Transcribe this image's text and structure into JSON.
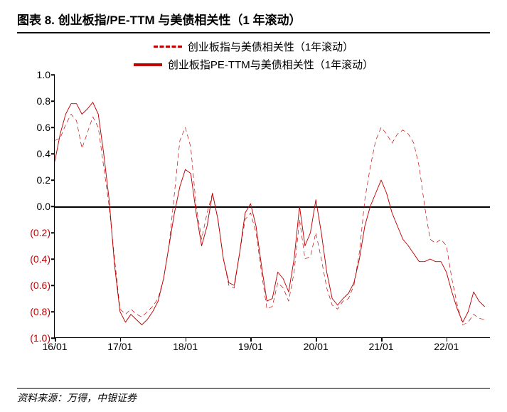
{
  "title": "图表 8. 创业板指/PE-TTM 与美债相关性（1 年滚动）",
  "source": "资料来源：万得，中银证券",
  "chart": {
    "type": "line",
    "ylim": [
      -1.0,
      1.0
    ],
    "yticks": [
      {
        "v": 1.0,
        "label": "1.0",
        "neg": false
      },
      {
        "v": 0.8,
        "label": "0.8",
        "neg": false
      },
      {
        "v": 0.6,
        "label": "0.6",
        "neg": false
      },
      {
        "v": 0.4,
        "label": "0.4",
        "neg": false
      },
      {
        "v": 0.2,
        "label": "0.2",
        "neg": false
      },
      {
        "v": 0.0,
        "label": "0.0",
        "neg": false
      },
      {
        "v": -0.2,
        "label": "(0.2)",
        "neg": true
      },
      {
        "v": -0.4,
        "label": "(0.4)",
        "neg": true
      },
      {
        "v": -0.6,
        "label": "(0.6)",
        "neg": true
      },
      {
        "v": -0.8,
        "label": "(0.8)",
        "neg": true
      },
      {
        "v": -1.0,
        "label": "(1.0)",
        "neg": true
      }
    ],
    "xlim": [
      0,
      80
    ],
    "xticks": [
      {
        "x": 0,
        "label": "16/01"
      },
      {
        "x": 12,
        "label": "17/01"
      },
      {
        "x": 24,
        "label": "18/01"
      },
      {
        "x": 36,
        "label": "19/01"
      },
      {
        "x": 48,
        "label": "20/01"
      },
      {
        "x": 60,
        "label": "21/01"
      },
      {
        "x": 72,
        "label": "22/01"
      }
    ],
    "background_color": "#ffffff",
    "axis_color": "#000000",
    "series": [
      {
        "name": "创业板指与美债相关性（1年滚动）",
        "style": "dashed",
        "color": "#c00000",
        "width": 2.5,
        "data": [
          [
            0,
            0.5
          ],
          [
            1,
            0.52
          ],
          [
            2,
            0.62
          ],
          [
            3,
            0.7
          ],
          [
            4,
            0.65
          ],
          [
            5,
            0.44
          ],
          [
            6,
            0.56
          ],
          [
            7,
            0.68
          ],
          [
            8,
            0.6
          ],
          [
            9,
            0.3
          ],
          [
            10,
            0.0
          ],
          [
            11,
            -0.4
          ],
          [
            12,
            -0.78
          ],
          [
            13,
            -0.82
          ],
          [
            14,
            -0.78
          ],
          [
            15,
            -0.82
          ],
          [
            16,
            -0.84
          ],
          [
            17,
            -0.8
          ],
          [
            18,
            -0.76
          ],
          [
            19,
            -0.7
          ],
          [
            20,
            -0.55
          ],
          [
            21,
            -0.3
          ],
          [
            22,
            0.1
          ],
          [
            23,
            0.5
          ],
          [
            24,
            0.6
          ],
          [
            25,
            0.45
          ],
          [
            26,
            0.0
          ],
          [
            27,
            -0.25
          ],
          [
            28,
            -0.05
          ],
          [
            29,
            0.1
          ],
          [
            30,
            -0.1
          ],
          [
            31,
            -0.4
          ],
          [
            32,
            -0.6
          ],
          [
            33,
            -0.62
          ],
          [
            34,
            -0.35
          ],
          [
            35,
            -0.1
          ],
          [
            36,
            -0.05
          ],
          [
            37,
            -0.2
          ],
          [
            38,
            -0.5
          ],
          [
            39,
            -0.78
          ],
          [
            40,
            -0.76
          ],
          [
            41,
            -0.58
          ],
          [
            42,
            -0.62
          ],
          [
            43,
            -0.72
          ],
          [
            44,
            -0.5
          ],
          [
            45,
            -0.1
          ],
          [
            46,
            -0.4
          ],
          [
            47,
            -0.38
          ],
          [
            48,
            -0.2
          ],
          [
            49,
            -0.4
          ],
          [
            50,
            -0.62
          ],
          [
            51,
            -0.75
          ],
          [
            52,
            -0.78
          ],
          [
            53,
            -0.72
          ],
          [
            54,
            -0.7
          ],
          [
            55,
            -0.6
          ],
          [
            56,
            -0.35
          ],
          [
            57,
            0.05
          ],
          [
            58,
            0.3
          ],
          [
            59,
            0.5
          ],
          [
            60,
            0.6
          ],
          [
            61,
            0.55
          ],
          [
            62,
            0.48
          ],
          [
            63,
            0.55
          ],
          [
            64,
            0.58
          ],
          [
            65,
            0.55
          ],
          [
            66,
            0.48
          ],
          [
            67,
            0.3
          ],
          [
            68,
            0.0
          ],
          [
            69,
            -0.25
          ],
          [
            70,
            -0.28
          ],
          [
            71,
            -0.25
          ],
          [
            72,
            -0.3
          ],
          [
            73,
            -0.55
          ],
          [
            74,
            -0.75
          ],
          [
            75,
            -0.9
          ],
          [
            76,
            -0.88
          ],
          [
            77,
            -0.82
          ],
          [
            78,
            -0.85
          ],
          [
            79,
            -0.86
          ]
        ]
      },
      {
        "name": "创业板指PE-TTM与美债相关性（1年滚动）",
        "style": "solid",
        "color": "#c00000",
        "width": 3.5,
        "data": [
          [
            0,
            0.34
          ],
          [
            1,
            0.55
          ],
          [
            2,
            0.7
          ],
          [
            3,
            0.78
          ],
          [
            4,
            0.78
          ],
          [
            5,
            0.7
          ],
          [
            6,
            0.74
          ],
          [
            7,
            0.79
          ],
          [
            8,
            0.7
          ],
          [
            9,
            0.4
          ],
          [
            10,
            0.05
          ],
          [
            11,
            -0.45
          ],
          [
            12,
            -0.8
          ],
          [
            13,
            -0.88
          ],
          [
            14,
            -0.82
          ],
          [
            15,
            -0.86
          ],
          [
            16,
            -0.9
          ],
          [
            17,
            -0.86
          ],
          [
            18,
            -0.8
          ],
          [
            19,
            -0.72
          ],
          [
            20,
            -0.55
          ],
          [
            21,
            -0.3
          ],
          [
            22,
            -0.05
          ],
          [
            23,
            0.15
          ],
          [
            24,
            0.28
          ],
          [
            25,
            0.25
          ],
          [
            26,
            -0.05
          ],
          [
            27,
            -0.3
          ],
          [
            28,
            -0.15
          ],
          [
            29,
            0.1
          ],
          [
            30,
            -0.1
          ],
          [
            31,
            -0.4
          ],
          [
            32,
            -0.58
          ],
          [
            33,
            -0.6
          ],
          [
            34,
            -0.35
          ],
          [
            35,
            -0.05
          ],
          [
            36,
            0.02
          ],
          [
            37,
            -0.15
          ],
          [
            38,
            -0.45
          ],
          [
            39,
            -0.72
          ],
          [
            40,
            -0.7
          ],
          [
            41,
            -0.5
          ],
          [
            42,
            -0.55
          ],
          [
            43,
            -0.65
          ],
          [
            44,
            -0.4
          ],
          [
            45,
            0.0
          ],
          [
            46,
            -0.3
          ],
          [
            47,
            -0.2
          ],
          [
            48,
            0.05
          ],
          [
            49,
            -0.2
          ],
          [
            50,
            -0.5
          ],
          [
            51,
            -0.7
          ],
          [
            52,
            -0.75
          ],
          [
            53,
            -0.7
          ],
          [
            54,
            -0.66
          ],
          [
            55,
            -0.58
          ],
          [
            56,
            -0.4
          ],
          [
            57,
            -0.15
          ],
          [
            58,
            0.0
          ],
          [
            59,
            0.1
          ],
          [
            60,
            0.2
          ],
          [
            61,
            0.1
          ],
          [
            62,
            -0.05
          ],
          [
            63,
            -0.15
          ],
          [
            64,
            -0.25
          ],
          [
            65,
            -0.3
          ],
          [
            66,
            -0.36
          ],
          [
            67,
            -0.42
          ],
          [
            68,
            -0.42
          ],
          [
            69,
            -0.4
          ],
          [
            70,
            -0.42
          ],
          [
            71,
            -0.42
          ],
          [
            72,
            -0.5
          ],
          [
            73,
            -0.65
          ],
          [
            74,
            -0.78
          ],
          [
            75,
            -0.88
          ],
          [
            76,
            -0.8
          ],
          [
            77,
            -0.65
          ],
          [
            78,
            -0.72
          ],
          [
            79,
            -0.76
          ]
        ]
      }
    ]
  }
}
